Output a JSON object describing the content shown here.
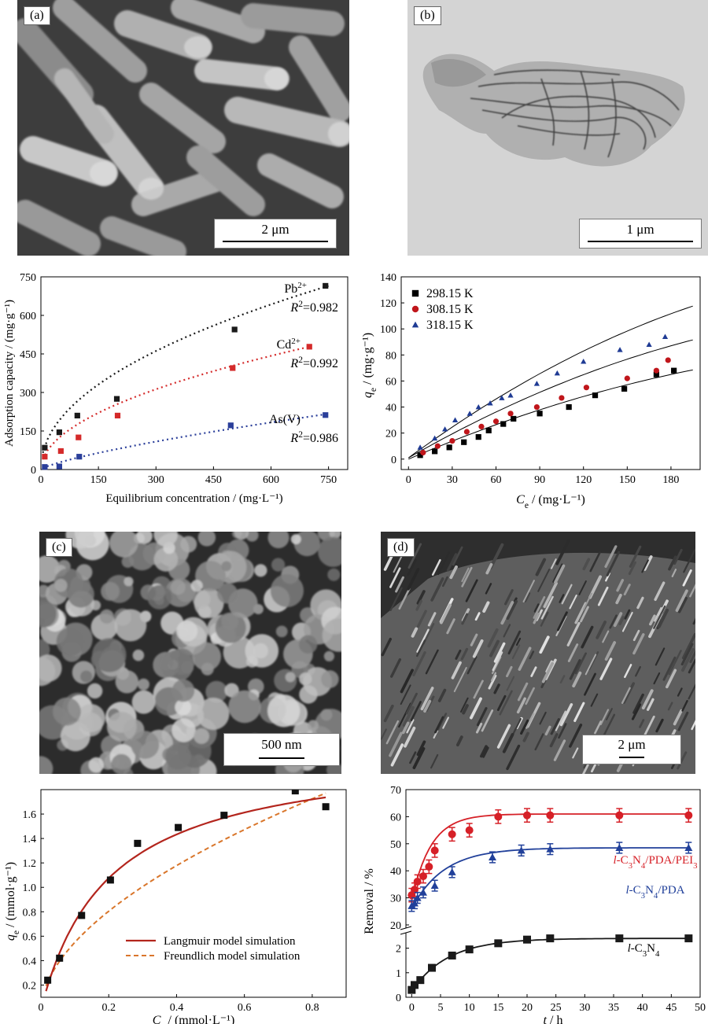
{
  "panels": {
    "a": {
      "label": "(a)",
      "scale": "2 μm"
    },
    "b": {
      "label": "(b)",
      "scale": "1 μm"
    },
    "c": {
      "label": "(c)",
      "scale": "500 nm"
    },
    "d": {
      "label": "(d)",
      "scale": "2 μm"
    }
  },
  "chart_data": [
    {
      "id": "adsorption-capacity",
      "type": "scatter",
      "xlabel": "Equilibrium concentration / (mg·L⁻¹)",
      "ylabel": "Adsorption capacity / (mg·g⁻¹)",
      "xlim": [
        0,
        800
      ],
      "ylim": [
        0,
        750
      ],
      "xticks": [
        0,
        150,
        300,
        450,
        600,
        750
      ],
      "yticks": [
        0,
        150,
        300,
        450,
        600,
        750
      ],
      "series": [
        {
          "name": "Pb²⁺",
          "r2": "R²=0.982",
          "color": "#1a1a1a",
          "x": [
            10,
            48,
            95,
            198,
            505,
            742
          ],
          "y": [
            85,
            145,
            210,
            275,
            545,
            715
          ],
          "fit_x": [
            5,
            750
          ],
          "fit_y": [
            65,
            715
          ]
        },
        {
          "name": "Cd²⁺",
          "r2": "R²=0.992",
          "color": "#d42a2a",
          "x": [
            10,
            52,
            98,
            200,
            500,
            700
          ],
          "y": [
            50,
            72,
            125,
            210,
            395,
            478
          ],
          "fit_x": [
            5,
            700
          ],
          "fit_y": [
            40,
            478
          ]
        },
        {
          "name": "As(V)",
          "r2": "R²=0.986",
          "color": "#2b3f9a",
          "x": [
            10,
            48,
            100,
            495,
            742
          ],
          "y": [
            10,
            12,
            50,
            172,
            212
          ],
          "fit_x": [
            5,
            742
          ],
          "fit_y": [
            5,
            215
          ]
        }
      ]
    },
    {
      "id": "qe-vs-ce-temperature",
      "type": "scatter",
      "xlabel": "Ce / (mg·L⁻¹)",
      "ylabel": "qe / (mg·g⁻¹)",
      "xlim": [
        -5,
        200
      ],
      "ylim": [
        -8,
        140
      ],
      "xticks": [
        0,
        30,
        60,
        90,
        120,
        150,
        180
      ],
      "yticks": [
        0,
        20,
        40,
        60,
        80,
        100,
        120,
        140
      ],
      "series": [
        {
          "name": "298.15 K",
          "color": "#000000",
          "marker": "square",
          "x": [
            8,
            18,
            28,
            38,
            48,
            55,
            65,
            72,
            90,
            110,
            128,
            148,
            170,
            182
          ],
          "y": [
            3,
            6,
            9,
            13,
            17,
            22,
            27,
            31,
            35,
            40,
            49,
            54,
            65,
            68
          ],
          "fit_a": 0.48,
          "fit_b": 0.00165
        },
        {
          "name": "308.15 K",
          "color": "#c0161b",
          "marker": "circle",
          "x": [
            10,
            20,
            30,
            40,
            50,
            60,
            70,
            88,
            105,
            122,
            150,
            170,
            178
          ],
          "y": [
            5,
            10,
            14,
            21,
            25,
            29,
            35,
            40,
            47,
            55,
            62,
            68,
            76
          ],
          "fit_a": 0.64,
          "fit_b": 0.00225
        },
        {
          "name": "318.15 K",
          "color": "#1f3b94",
          "marker": "triangle",
          "x": [
            8,
            18,
            25,
            32,
            42,
            48,
            56,
            64,
            70,
            88,
            102,
            120,
            145,
            165,
            176
          ],
          "y": [
            9,
            16,
            23,
            30,
            35,
            40,
            43,
            47,
            49,
            58,
            66,
            75,
            84,
            88,
            94
          ],
          "fit_a": 0.82,
          "fit_b": 0.00285
        }
      ]
    },
    {
      "id": "langmuir-freundlich",
      "type": "scatter",
      "xlabel": "Ce / (mmol·L⁻¹)",
      "ylabel": "qe / (mmol·g⁻¹)",
      "xlim": [
        0,
        0.9
      ],
      "ylim": [
        0.1,
        1.8
      ],
      "xticks": [
        0,
        0.2,
        0.4,
        0.6,
        0.8
      ],
      "xtick_labels": [
        "0",
        "0.2",
        "0.4",
        "0.6",
        "0.8"
      ],
      "yticks": [
        0.2,
        0.4,
        0.6,
        0.8,
        1.0,
        1.2,
        1.4,
        1.6
      ],
      "ytick_labels": [
        "0.2",
        "0.4",
        "0.6",
        "0.8",
        "1.0",
        "1.2",
        "1.4",
        "1.6"
      ],
      "points": {
        "x": [
          0.02,
          0.055,
          0.12,
          0.205,
          0.285,
          0.405,
          0.54,
          0.75,
          0.84
        ],
        "y": [
          0.24,
          0.42,
          0.77,
          1.06,
          1.36,
          1.49,
          1.59,
          1.79,
          1.66
        ]
      },
      "series": [
        {
          "name": "Langmuir model simulation",
          "color": "#b3251d",
          "qmax": 2.15,
          "kl": 5.0
        },
        {
          "name": "Freundlich model simulation",
          "color": "#d9762b",
          "kf": 1.95,
          "n": 0.55
        }
      ]
    },
    {
      "id": "removal-vs-time",
      "type": "line",
      "xlabel": "t / h",
      "ylabel": "Removal / %",
      "xlim": [
        -1,
        50
      ],
      "xticks": [
        0,
        5,
        10,
        15,
        20,
        25,
        30,
        35,
        40,
        45,
        50
      ],
      "yticks_upper": [
        20,
        30,
        40,
        50,
        60,
        70
      ],
      "yticks_lower": [
        0,
        1,
        2
      ],
      "series": [
        {
          "name": "l-C3N4/PDA/PEI3",
          "color": "#d62027",
          "marker": "circle",
          "x": [
            0,
            0.5,
            1,
            2,
            3,
            4,
            7,
            10,
            15,
            20,
            24,
            36,
            48
          ],
          "y": [
            31,
            33,
            36,
            38,
            41.5,
            47.5,
            53.5,
            55,
            60,
            60.5,
            60.5,
            60.5,
            60.5
          ],
          "err": 2.5,
          "plateau": 61,
          "k": 0.3,
          "y0": 29
        },
        {
          "name": "l-C3N4/PDA",
          "color": "#21409a",
          "marker": "triangle",
          "x": [
            0,
            0.5,
            1,
            2,
            4,
            7,
            14,
            19,
            24,
            36,
            48
          ],
          "y": [
            27,
            28,
            30,
            32,
            34.5,
            39.5,
            45,
            47.5,
            48,
            48.5,
            48.5
          ],
          "err": 2,
          "plateau": 48.5,
          "k": 0.18,
          "y0": 26
        },
        {
          "name": "l-C3N4",
          "color": "#1a1a1a",
          "marker": "square",
          "x": [
            0,
            0.5,
            1.5,
            3.5,
            7,
            10,
            15,
            20,
            24,
            36,
            48
          ],
          "y": [
            0.3,
            0.5,
            0.7,
            1.2,
            1.7,
            1.95,
            2.2,
            2.35,
            2.4,
            2.4,
            2.4
          ],
          "plateau": 2.4,
          "k": 0.16,
          "y0": 0.25
        }
      ]
    }
  ]
}
